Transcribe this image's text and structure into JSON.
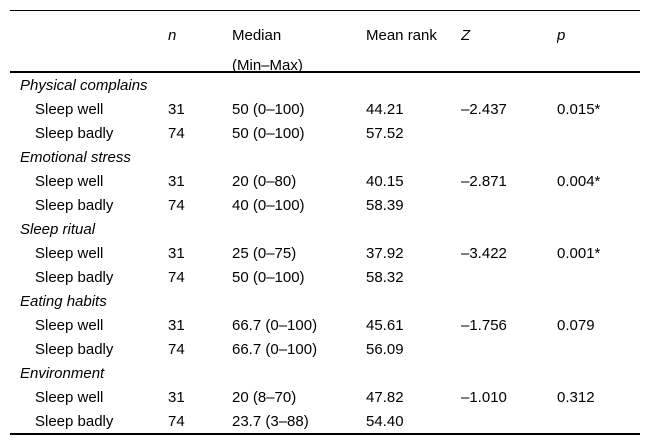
{
  "table": {
    "columns": {
      "label": "",
      "n": "n",
      "median": "Median\n(Min–Max)",
      "mean_rank": "Mean rank",
      "z": "Z",
      "p": "p"
    },
    "groups": [
      {
        "name": "Physical complains",
        "rows": [
          {
            "label": "Sleep well",
            "n": "31",
            "median": "50 (0–100)",
            "mean_rank": "44.21",
            "z": "–2.437",
            "p": "0.015*"
          },
          {
            "label": "Sleep badly",
            "n": "74",
            "median": "50 (0–100)",
            "mean_rank": "57.52",
            "z": "",
            "p": ""
          }
        ]
      },
      {
        "name": "Emotional stress",
        "rows": [
          {
            "label": "Sleep well",
            "n": "31",
            "median": "20 (0–80)",
            "mean_rank": "40.15",
            "z": "–2.871",
            "p": "0.004*"
          },
          {
            "label": "Sleep badly",
            "n": "74",
            "median": "40 (0–100)",
            "mean_rank": "58.39",
            "z": "",
            "p": ""
          }
        ]
      },
      {
        "name": "Sleep ritual",
        "rows": [
          {
            "label": "Sleep well",
            "n": "31",
            "median": "25 (0–75)",
            "mean_rank": "37.92",
            "z": "–3.422",
            "p": "0.001*"
          },
          {
            "label": "Sleep badly",
            "n": "74",
            "median": "50 (0–100)",
            "mean_rank": "58.32",
            "z": "",
            "p": ""
          }
        ]
      },
      {
        "name": "Eating habits",
        "rows": [
          {
            "label": "Sleep well",
            "n": "31",
            "median": "66.7 (0–100)",
            "mean_rank": "45.61",
            "z": "–1.756",
            "p": "0.079"
          },
          {
            "label": "Sleep badly",
            "n": "74",
            "median": "66.7 (0–100)",
            "mean_rank": "56.09",
            "z": "",
            "p": ""
          }
        ]
      },
      {
        "name": "Environment",
        "rows": [
          {
            "label": "Sleep well",
            "n": "31",
            "median": "20 (8–70)",
            "mean_rank": "47.82",
            "z": "–1.010",
            "p": "0.312"
          },
          {
            "label": "Sleep badly",
            "n": "74",
            "median": "23.7 (3–88)",
            "mean_rank": "54.40",
            "z": "",
            "p": ""
          }
        ]
      }
    ]
  }
}
